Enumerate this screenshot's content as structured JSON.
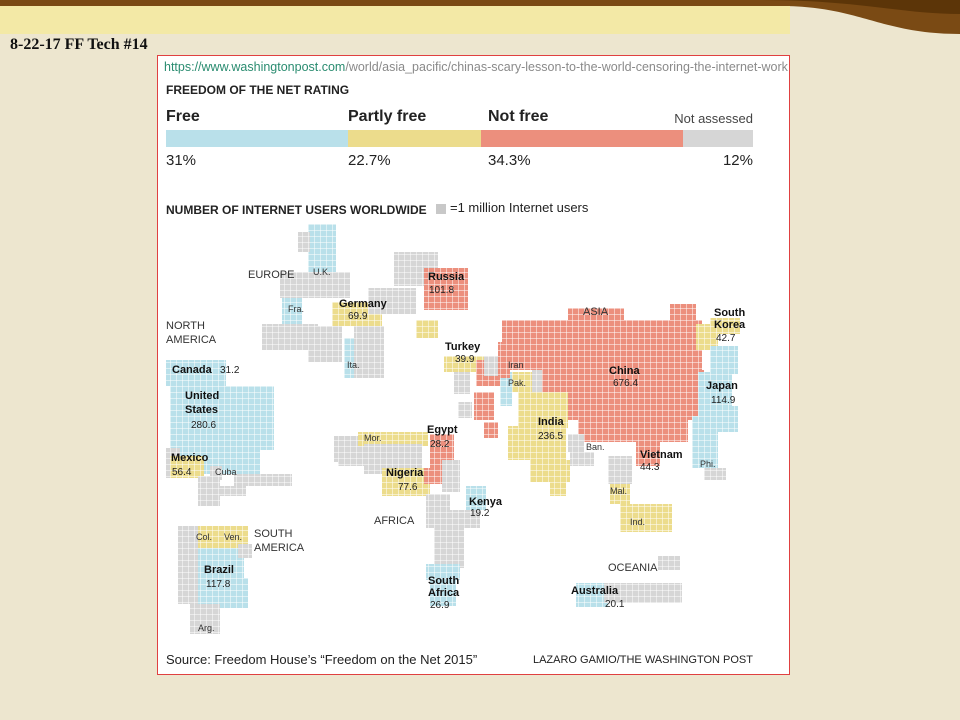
{
  "slide": {
    "title": "8-22-17 FF Tech #14"
  },
  "url": {
    "host": "https://www.washingtonpost.com",
    "path": "/world/asia_pacific/chinas-scary-lesson-to-the-world-censoring-the-internet-work"
  },
  "rating": {
    "title": "FREEDOM OF THE NET RATING",
    "categories": [
      {
        "label": "Free",
        "pct": "31%",
        "share": 31,
        "color": "#b9e0ea"
      },
      {
        "label": "Partly free",
        "pct": "22.7%",
        "share": 22.7,
        "color": "#ecdc8c"
      },
      {
        "label": "Not free",
        "pct": "34.3%",
        "share": 34.3,
        "color": "#ec8f7d"
      },
      {
        "label": "Not assessed",
        "pct": "12%",
        "share": 12,
        "color": "#d6d6d6"
      }
    ]
  },
  "users": {
    "title": "NUMBER OF INTERNET USERS WORLDWIDE",
    "legend": "=1 million Internet users"
  },
  "regions": {
    "europe": "EUROPE",
    "north_america_1": "NORTH",
    "north_america_2": "AMERICA",
    "asia": "ASIA",
    "africa": "AFRICA",
    "south_america_1": "SOUTH",
    "south_america_2": "AMERICA",
    "oceania": "OCEANIA"
  },
  "countries": {
    "uk": "U.K.",
    "fra": "Fra.",
    "ita": "Ita.",
    "mor": "Mor.",
    "cuba": "Cuba",
    "iran": "Iran",
    "pak": "Pak.",
    "ban": "Ban.",
    "mal": "Mal.",
    "ind": "Ind.",
    "phi": "Phi.",
    "col": "Col.",
    "ven": "Ven.",
    "arg": "Arg.",
    "russia": "Russia",
    "russia_v": "101.8",
    "germany": "Germany",
    "germany_v": "69.9",
    "turkey": "Turkey",
    "turkey_v": "39.9",
    "canada": "Canada",
    "canada_v": "31.2",
    "us_1": "United",
    "us_2": "States",
    "us_v": "280.6",
    "mexico": "Mexico",
    "mexico_v": "56.4",
    "china": "China",
    "china_v": "676.4",
    "korea_1": "South",
    "korea_2": "Korea",
    "korea_v": "42.7",
    "japan": "Japan",
    "japan_v": "114.9",
    "india": "India",
    "india_v": "236.5",
    "vietnam": "Vietnam",
    "vietnam_v": "44.3",
    "egypt": "Egypt",
    "egypt_v": "28.2",
    "nigeria": "Nigeria",
    "nigeria_v": "77.6",
    "kenya": "Kenya",
    "kenya_v": "19.2",
    "brazil": "Brazil",
    "brazil_v": "117.8",
    "safrica_1": "South",
    "safrica_2": "Africa",
    "safrica_v": "26.9",
    "australia": "Australia",
    "australia_v": "20.1"
  },
  "footer": {
    "source": "Source: Freedom House’s “Freedom on the Net 2015”",
    "credit": "LAZARO GAMIO/THE WASHINGTON POST"
  }
}
